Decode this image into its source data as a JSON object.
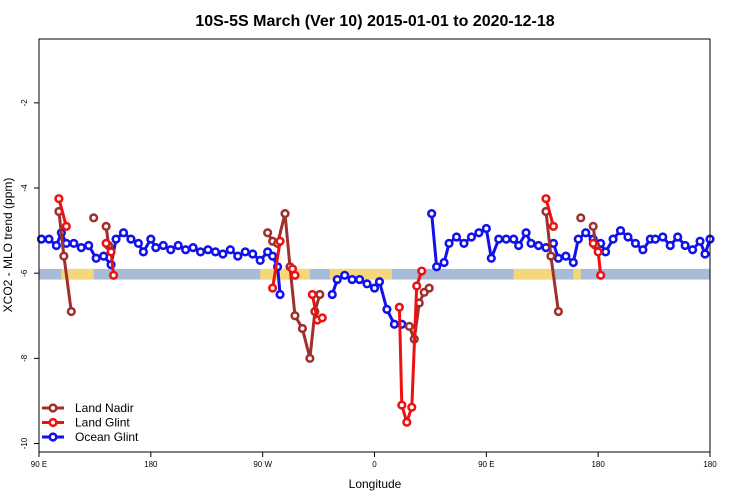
{
  "chart_data": {
    "type": "line",
    "title": "10S-5S March (Ver 10)   2015-01-01 to 2020-12-18",
    "xlabel": "Longitude",
    "ylabel": "XCO2 - MLO trend (ppm)",
    "xlim": [
      -90,
      180
    ],
    "ylim": [
      -10.2,
      -0.5
    ],
    "x_ticks": [
      {
        "value": -90,
        "label": "90 E"
      },
      {
        "value": -45,
        "label": "180"
      },
      {
        "value": 0,
        "label": "90 W"
      },
      {
        "value": 45,
        "label": "0"
      },
      {
        "value": 90,
        "label": "90 E"
      },
      {
        "value": 135,
        "label": "180"
      }
    ],
    "y_ticks": [
      {
        "value": -2,
        "label": "-2"
      },
      {
        "value": -4,
        "label": "-4"
      },
      {
        "value": -6,
        "label": "-6"
      },
      {
        "value": -8,
        "label": "-8"
      },
      {
        "value": -10,
        "label": "-10"
      }
    ],
    "grid": false,
    "legend_position": "bottom-left",
    "band": {
      "y_range": [
        -6.15,
        -5.9
      ],
      "ocean_color": "#a8bcd8",
      "land_color": "#f5d67a",
      "land_segments": [
        [
          -81,
          -68
        ],
        [
          -1,
          19
        ],
        [
          27,
          52
        ],
        [
          101,
          117
        ],
        [
          125,
          128
        ]
      ]
    },
    "series": [
      {
        "name": "Land Nadir",
        "color": "#a0302e",
        "segments": [
          [
            [
              -82,
              -4.55
            ],
            [
              -80,
              -5.6
            ],
            [
              -77,
              -6.9
            ]
          ],
          [
            [
              -68,
              -4.7
            ]
          ],
          [
            [
              -63,
              -4.9
            ],
            [
              -62,
              -5.35
            ]
          ],
          [
            [
              2,
              -5.05
            ],
            [
              4,
              -5.25
            ],
            [
              6,
              -5.3
            ],
            [
              9,
              -4.6
            ],
            [
              11,
              -5.85
            ],
            [
              13,
              -7.0
            ],
            [
              16,
              -7.3
            ],
            [
              19,
              -8.0
            ],
            [
              21,
              -6.9
            ],
            [
              23,
              -6.5
            ]
          ],
          [
            [
              59,
              -7.25
            ],
            [
              61,
              -7.55
            ],
            [
              63,
              -6.7
            ],
            [
              65,
              -6.45
            ],
            [
              67,
              -6.35
            ]
          ],
          [
            [
              114,
              -4.55
            ],
            [
              116,
              -5.6
            ],
            [
              119,
              -6.9
            ]
          ],
          [
            [
              128,
              -4.7
            ]
          ],
          [
            [
              133,
              -4.9
            ],
            [
              134,
              -5.35
            ]
          ]
        ]
      },
      {
        "name": "Land Glint",
        "color": "#ee1111",
        "segments": [
          [
            [
              -82,
              -4.25
            ],
            [
              -79,
              -4.9
            ]
          ],
          [
            [
              -63,
              -5.3
            ],
            [
              -61,
              -5.5
            ],
            [
              -60,
              -6.05
            ]
          ],
          [
            [
              4,
              -6.35
            ],
            [
              7,
              -5.25
            ]
          ],
          [
            [
              12,
              -5.9
            ],
            [
              13,
              -6.05
            ]
          ],
          [
            [
              20,
              -6.5
            ],
            [
              22,
              -7.1
            ],
            [
              24,
              -7.05
            ]
          ],
          [
            [
              55,
              -6.8
            ],
            [
              56,
              -9.1
            ],
            [
              58,
              -9.5
            ],
            [
              60,
              -9.15
            ],
            [
              62,
              -6.3
            ],
            [
              64,
              -5.95
            ]
          ],
          [
            [
              114,
              -4.25
            ],
            [
              117,
              -4.9
            ]
          ],
          [
            [
              133,
              -5.3
            ],
            [
              135,
              -5.5
            ],
            [
              136,
              -6.05
            ]
          ]
        ]
      },
      {
        "name": "Ocean Glint",
        "color": "#1111ee",
        "segments": [
          [
            [
              -89,
              -5.2
            ],
            [
              -86,
              -5.2
            ],
            [
              -83,
              -5.35
            ],
            [
              -81,
              -5.05
            ],
            [
              -79,
              -5.3
            ],
            [
              -76,
              -5.3
            ],
            [
              -73,
              -5.4
            ],
            [
              -70,
              -5.35
            ],
            [
              -67,
              -5.65
            ],
            [
              -64,
              -5.6
            ],
            [
              -61,
              -5.8
            ],
            [
              -59,
              -5.2
            ],
            [
              -56,
              -5.05
            ],
            [
              -53,
              -5.2
            ],
            [
              -50,
              -5.3
            ],
            [
              -48,
              -5.5
            ],
            [
              -45,
              -5.2
            ],
            [
              -43,
              -5.4
            ],
            [
              -40,
              -5.35
            ],
            [
              -37,
              -5.45
            ],
            [
              -34,
              -5.35
            ],
            [
              -31,
              -5.45
            ],
            [
              -28,
              -5.4
            ],
            [
              -25,
              -5.5
            ],
            [
              -22,
              -5.45
            ],
            [
              -19,
              -5.5
            ],
            [
              -16,
              -5.55
            ],
            [
              -13,
              -5.45
            ],
            [
              -10,
              -5.6
            ],
            [
              -7,
              -5.5
            ],
            [
              -4,
              -5.55
            ],
            [
              -1,
              -5.7
            ],
            [
              2,
              -5.5
            ],
            [
              4,
              -5.6
            ],
            [
              6,
              -5.85
            ],
            [
              7,
              -6.5
            ]
          ],
          [
            [
              28,
              -6.5
            ],
            [
              30,
              -6.15
            ],
            [
              33,
              -6.05
            ],
            [
              36,
              -6.15
            ],
            [
              39,
              -6.15
            ],
            [
              42,
              -6.25
            ],
            [
              45,
              -6.35
            ],
            [
              47,
              -6.2
            ],
            [
              50,
              -6.85
            ],
            [
              53,
              -7.2
            ],
            [
              56,
              -7.2
            ]
          ],
          [
            [
              68,
              -4.6
            ],
            [
              70,
              -5.85
            ],
            [
              73,
              -5.75
            ],
            [
              75,
              -5.3
            ],
            [
              78,
              -5.15
            ],
            [
              81,
              -5.3
            ],
            [
              84,
              -5.15
            ],
            [
              87,
              -5.05
            ],
            [
              90,
              -4.95
            ],
            [
              92,
              -5.65
            ],
            [
              95,
              -5.2
            ],
            [
              98,
              -5.2
            ],
            [
              101,
              -5.2
            ],
            [
              103,
              -5.35
            ],
            [
              106,
              -5.05
            ],
            [
              108,
              -5.3
            ],
            [
              111,
              -5.35
            ],
            [
              114,
              -5.4
            ],
            [
              117,
              -5.3
            ],
            [
              119,
              -5.65
            ],
            [
              122,
              -5.6
            ],
            [
              125,
              -5.75
            ],
            [
              127,
              -5.2
            ],
            [
              130,
              -5.05
            ],
            [
              133,
              -5.2
            ],
            [
              136,
              -5.3
            ],
            [
              138,
              -5.5
            ],
            [
              141,
              -5.2
            ],
            [
              144,
              -5.0
            ],
            [
              147,
              -5.15
            ],
            [
              150,
              -5.3
            ],
            [
              153,
              -5.45
            ],
            [
              156,
              -5.2
            ],
            [
              158,
              -5.2
            ],
            [
              161,
              -5.15
            ],
            [
              164,
              -5.35
            ],
            [
              167,
              -5.15
            ],
            [
              170,
              -5.35
            ],
            [
              173,
              -5.45
            ],
            [
              176,
              -5.25
            ],
            [
              178,
              -5.55
            ],
            [
              180,
              -5.2
            ]
          ]
        ]
      }
    ]
  }
}
